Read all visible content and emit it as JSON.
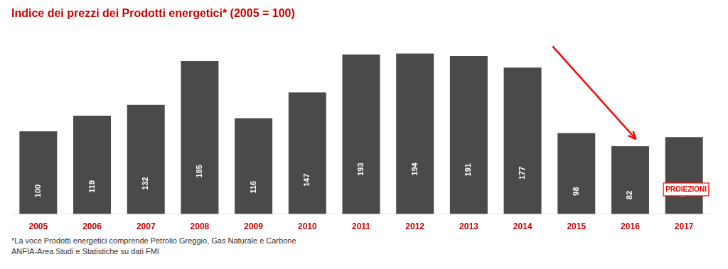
{
  "chart_data": {
    "type": "bar",
    "title": "Indice dei prezzi dei Prodotti energetici* (2005 = 100)",
    "categories": [
      "2005",
      "2006",
      "2007",
      "2008",
      "2009",
      "2010",
      "2011",
      "2012",
      "2013",
      "2014",
      "2015",
      "2016",
      "2017"
    ],
    "values": [
      100,
      119,
      132,
      185,
      116,
      147,
      193,
      194,
      191,
      177,
      98,
      82,
      93
    ],
    "color": "#4a4a4a",
    "ylim": [
      0,
      220
    ],
    "grid": false,
    "tick_labels": "x",
    "data_labels": true,
    "annotations": [
      "PROIEZIONI"
    ],
    "footnotes": [
      "*La voce Prodotti energetici comprende Petrolio Greggio, Gas Naturale e Carbone",
      "ANFIA-Area Studi e Statistiche su dati FMI"
    ]
  }
}
